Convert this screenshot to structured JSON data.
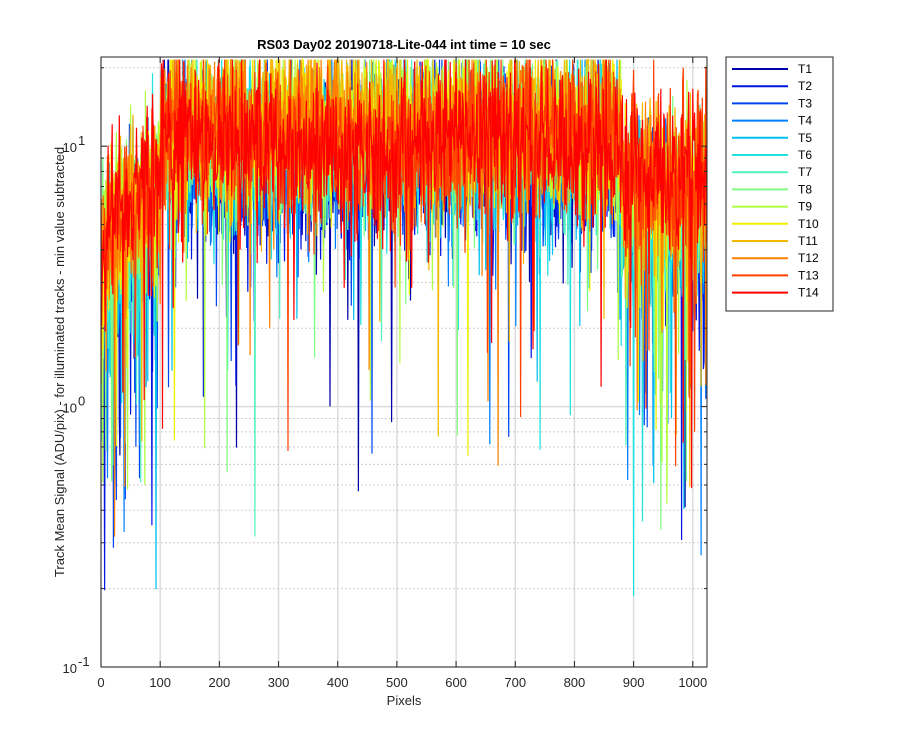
{
  "chart_data": {
    "type": "line",
    "title": "RS03 Day02 20190718-Lite-044 int time = 10 sec",
    "xlabel": "Pixels",
    "ylabel": "Track Mean Signal (ADU/pix) - for illuminated tracks - min value subtracted",
    "xlim": [
      0,
      1024
    ],
    "ylim": [
      0.1,
      22
    ],
    "yscale": "log",
    "grid": true,
    "legend_position": "outside-top-right",
    "x_ticks": [
      0,
      100,
      200,
      300,
      400,
      500,
      600,
      700,
      800,
      900,
      1000
    ],
    "x_tick_labels": [
      "0",
      "100",
      "200",
      "300",
      "400",
      "500",
      "600",
      "700",
      "800",
      "900",
      "1000"
    ],
    "y_ticks": [
      {
        "value": 0.1,
        "base": "10",
        "exp": "-1"
      },
      {
        "value": 1,
        "base": "10",
        "exp": "0"
      },
      {
        "value": 10,
        "base": "10",
        "exp": "1"
      }
    ],
    "profile_note": "Each track is a noisy profile: ~3-8 ADU/pix for pixels 0-100, ~8-15 ADU/pix plateau for 100-880, noisy 2-10 ADU/pix for 880-1024, with deep downward spikes.",
    "series": [
      {
        "name": "T1",
        "color": "#0000aa",
        "level": 9.0,
        "edge": 4.0
      },
      {
        "name": "T2",
        "color": "#0015e0",
        "level": 8.5,
        "edge": 3.8
      },
      {
        "name": "T3",
        "color": "#0046f0",
        "level": 9.5,
        "edge": 4.2
      },
      {
        "name": "T4",
        "color": "#0080ff",
        "level": 10.5,
        "edge": 4.5
      },
      {
        "name": "T5",
        "color": "#00c0f0",
        "level": 9.5,
        "edge": 3.5
      },
      {
        "name": "T6",
        "color": "#20e0e0",
        "level": 10.0,
        "edge": 4.0
      },
      {
        "name": "T7",
        "color": "#50f0c0",
        "level": 10.5,
        "edge": 4.5
      },
      {
        "name": "T8",
        "color": "#80ff80",
        "level": 11.0,
        "edge": 5.0
      },
      {
        "name": "T9",
        "color": "#b0ff40",
        "level": 12.0,
        "edge": 5.5
      },
      {
        "name": "T10",
        "color": "#f0f000",
        "level": 11.5,
        "edge": 5.0
      },
      {
        "name": "T11",
        "color": "#f5b800",
        "level": 12.5,
        "edge": 6.0
      },
      {
        "name": "T12",
        "color": "#ff8000",
        "level": 11.0,
        "edge": 5.5
      },
      {
        "name": "T13",
        "color": "#ff4000",
        "level": 10.5,
        "edge": 6.0
      },
      {
        "name": "T14",
        "color": "#ff0000",
        "level": 10.0,
        "edge": 6.5
      }
    ]
  }
}
